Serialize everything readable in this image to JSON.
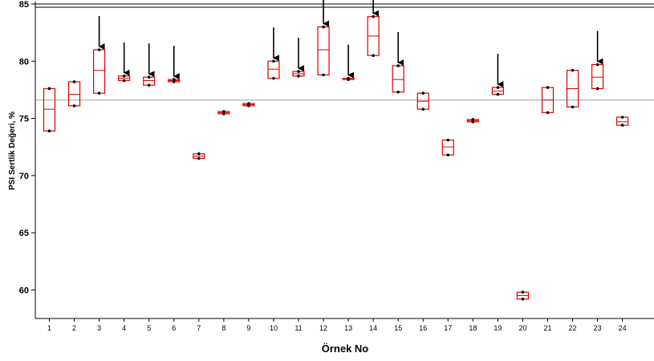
{
  "chart_data": {
    "type": "box",
    "xlabel": "Örnek No",
    "ylabel": "PSI Sertlik Değeri, %",
    "ylim": [
      57.5,
      85
    ],
    "yticks": [
      60,
      65,
      70,
      75,
      80,
      85
    ],
    "categories": [
      "1",
      "2",
      "3",
      "4",
      "5",
      "6",
      "7",
      "8",
      "9",
      "10",
      "11",
      "12",
      "13",
      "14",
      "15",
      "16",
      "17",
      "18",
      "19",
      "20",
      "21",
      "22",
      "23",
      "24"
    ],
    "reference_line": 76.6,
    "box_color": "#e00000",
    "boxes": [
      {
        "x": "1",
        "min": 73.9,
        "median": 75.8,
        "max": 77.6
      },
      {
        "x": "2",
        "min": 76.1,
        "median": 77.1,
        "max": 78.2
      },
      {
        "x": "3",
        "min": 77.2,
        "median": 79.2,
        "max": 81.0
      },
      {
        "x": "4",
        "min": 78.3,
        "median": 78.5,
        "max": 78.7
      },
      {
        "x": "5",
        "min": 77.9,
        "median": 78.3,
        "max": 78.6
      },
      {
        "x": "6",
        "min": 78.2,
        "median": 78.3,
        "max": 78.4
      },
      {
        "x": "7",
        "min": 71.5,
        "median": 71.7,
        "max": 71.9
      },
      {
        "x": "8",
        "min": 75.4,
        "median": 75.5,
        "max": 75.6
      },
      {
        "x": "9",
        "min": 76.1,
        "median": 76.2,
        "max": 76.3
      },
      {
        "x": "10",
        "min": 78.5,
        "median": 79.3,
        "max": 80.0
      },
      {
        "x": "11",
        "min": 78.7,
        "median": 78.9,
        "max": 79.1
      },
      {
        "x": "12",
        "min": 78.8,
        "median": 81.0,
        "max": 83.0
      },
      {
        "x": "13",
        "min": 78.4,
        "median": 78.4,
        "max": 78.5
      },
      {
        "x": "14",
        "min": 80.5,
        "median": 82.2,
        "max": 83.9
      },
      {
        "x": "15",
        "min": 77.3,
        "median": 78.4,
        "max": 79.6
      },
      {
        "x": "16",
        "min": 75.8,
        "median": 76.5,
        "max": 77.2
      },
      {
        "x": "17",
        "min": 71.8,
        "median": 72.5,
        "max": 73.1
      },
      {
        "x": "18",
        "min": 74.7,
        "median": 74.8,
        "max": 74.9
      },
      {
        "x": "19",
        "min": 77.1,
        "median": 77.4,
        "max": 77.7
      },
      {
        "x": "20",
        "min": 59.2,
        "median": 59.5,
        "max": 59.8
      },
      {
        "x": "21",
        "min": 75.5,
        "median": 76.6,
        "max": 77.7
      },
      {
        "x": "22",
        "min": 76.0,
        "median": 77.6,
        "max": 79.2
      },
      {
        "x": "23",
        "min": 77.6,
        "median": 78.6,
        "max": 79.7
      },
      {
        "x": "24",
        "min": 74.4,
        "median": 74.7,
        "max": 75.1
      }
    ],
    "arrows_at": [
      "3",
      "4",
      "5",
      "6",
      "10",
      "11",
      "12",
      "13",
      "14",
      "15",
      "19",
      "23"
    ],
    "grid": false
  }
}
